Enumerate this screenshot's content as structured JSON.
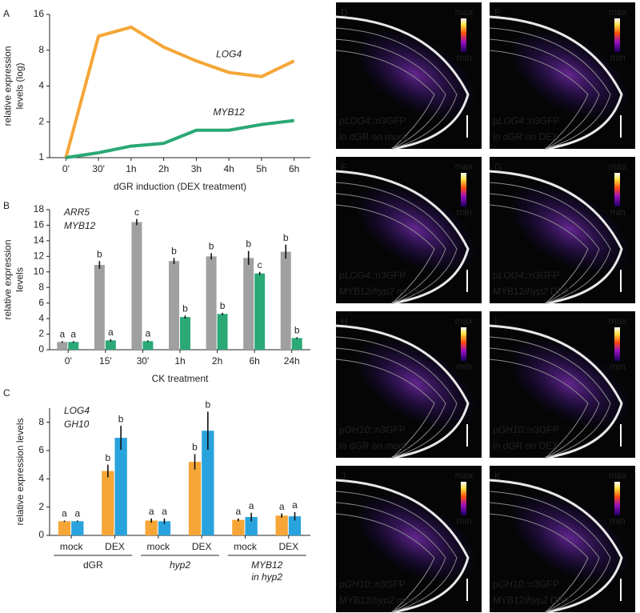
{
  "chart_data": [
    {
      "type": "line",
      "panel": "A",
      "log_scale": true,
      "categories": [
        "0'",
        "30'",
        "1h",
        "2h",
        "3h",
        "4h",
        "5h",
        "6h"
      ],
      "xlabel": "dGR induction (DEX treatment)",
      "ylabel": [
        "relative expression",
        "levels (log)"
      ],
      "ylim": [
        1,
        16
      ],
      "yticks": [
        1,
        2,
        4,
        8,
        16
      ],
      "series": [
        {
          "name": "LOG4",
          "color": "#f5a637",
          "values": [
            1,
            10.5,
            12.5,
            8.5,
            6.5,
            5.2,
            4.8,
            6.5
          ]
        },
        {
          "name": "MYB12",
          "color": "#2aa876",
          "values": [
            1,
            1.1,
            1.25,
            1.32,
            1.7,
            1.7,
            1.9,
            2.05
          ]
        }
      ]
    },
    {
      "type": "bar",
      "panel": "B",
      "categories": [
        "0'",
        "15'",
        "30'",
        "1h",
        "2h",
        "6h",
        "24h"
      ],
      "xlabel": "CK treatment",
      "ylabel": [
        "relative expression",
        "levels"
      ],
      "ylim": [
        0,
        18
      ],
      "yticks": [
        0,
        2,
        4,
        6,
        8,
        10,
        12,
        14,
        16,
        18
      ],
      "series": [
        {
          "name": "ARR5",
          "color": "#a0a0a0",
          "values": [
            1,
            10.9,
            16.4,
            11.4,
            12.0,
            11.8,
            12.6
          ],
          "errors": [
            0.1,
            0.5,
            0.4,
            0.4,
            0.4,
            0.9,
            0.9
          ],
          "letters": [
            "a",
            "b",
            "c",
            "b",
            "b",
            "b",
            "b"
          ]
        },
        {
          "name": "MYB12",
          "color": "#2aa876",
          "values": [
            1,
            1.2,
            1.1,
            4.2,
            4.6,
            9.8,
            1.5
          ],
          "errors": [
            0.1,
            0.15,
            0.1,
            0.2,
            0.15,
            0.2,
            0.1
          ],
          "letters": [
            "a",
            "a",
            "a",
            "b",
            "b",
            "c",
            "b"
          ]
        }
      ]
    },
    {
      "type": "bar",
      "panel": "C",
      "categories": [
        "mock",
        "DEX",
        "mock",
        "DEX",
        "mock",
        "DEX"
      ],
      "groups": [
        [
          "dGR"
        ],
        [
          "hyp2"
        ],
        [
          "MYB12",
          "in hyp2"
        ]
      ],
      "groups_italic": [
        false,
        true,
        true
      ],
      "ylabel": [
        "relative expression levels"
      ],
      "ylim": [
        0,
        9
      ],
      "yticks": [
        0,
        2,
        4,
        6,
        8
      ],
      "series": [
        {
          "name": "LOG4",
          "color": "#f5a637",
          "values": [
            1,
            4.55,
            1.05,
            5.2,
            1.1,
            1.4
          ],
          "errors": [
            0.05,
            0.45,
            0.15,
            0.55,
            0.1,
            0.15
          ],
          "letters": [
            "a",
            "b",
            "a",
            "b",
            "a",
            "a"
          ]
        },
        {
          "name": "GH10",
          "color": "#29a3dd",
          "values": [
            1,
            6.9,
            1.0,
            7.4,
            1.3,
            1.35
          ],
          "errors": [
            0.05,
            0.85,
            0.2,
            1.35,
            0.3,
            0.3
          ],
          "letters": [
            "a",
            "b",
            "a",
            "b",
            "a",
            "a"
          ]
        }
      ]
    }
  ],
  "colorbar": {
    "max": "max",
    "min": "min"
  },
  "images": [
    {
      "panel": "D",
      "caption": [
        [
          "p",
          "LOG4",
          "::n3GFP"
        ],
        [
          "in dGR on mock"
        ]
      ]
    },
    {
      "panel": "E",
      "caption": [
        [
          "p",
          "LOG4",
          "::n3GFP"
        ],
        [
          "in dGR on DEX"
        ]
      ]
    },
    {
      "panel": "F",
      "caption": [
        [
          "p",
          "LOG4",
          "::n3GFP"
        ],
        [
          "MYB12/",
          "hyp2",
          " mock"
        ]
      ]
    },
    {
      "panel": "G",
      "caption": [
        [
          "p",
          "LOG4",
          "::n3GFP"
        ],
        [
          "MYB12/",
          "hyp2",
          " DEX"
        ]
      ]
    },
    {
      "panel": "H",
      "caption": [
        [
          "p",
          "GH10",
          "::n3GFP"
        ],
        [
          "in dGR on mock"
        ]
      ]
    },
    {
      "panel": "I",
      "caption": [
        [
          "p",
          "GH10",
          "::n3GFP"
        ],
        [
          "in dGR on DEX"
        ]
      ]
    },
    {
      "panel": "J",
      "caption": [
        [
          "p",
          "GH10",
          "::n3GFP"
        ],
        [
          "MYB12/",
          "hyp2",
          " mock"
        ]
      ]
    },
    {
      "panel": "K",
      "caption": [
        [
          "p",
          "GH10",
          "::n3GFP"
        ],
        [
          "MYB12/",
          "hyp2",
          " DEX"
        ]
      ]
    }
  ]
}
